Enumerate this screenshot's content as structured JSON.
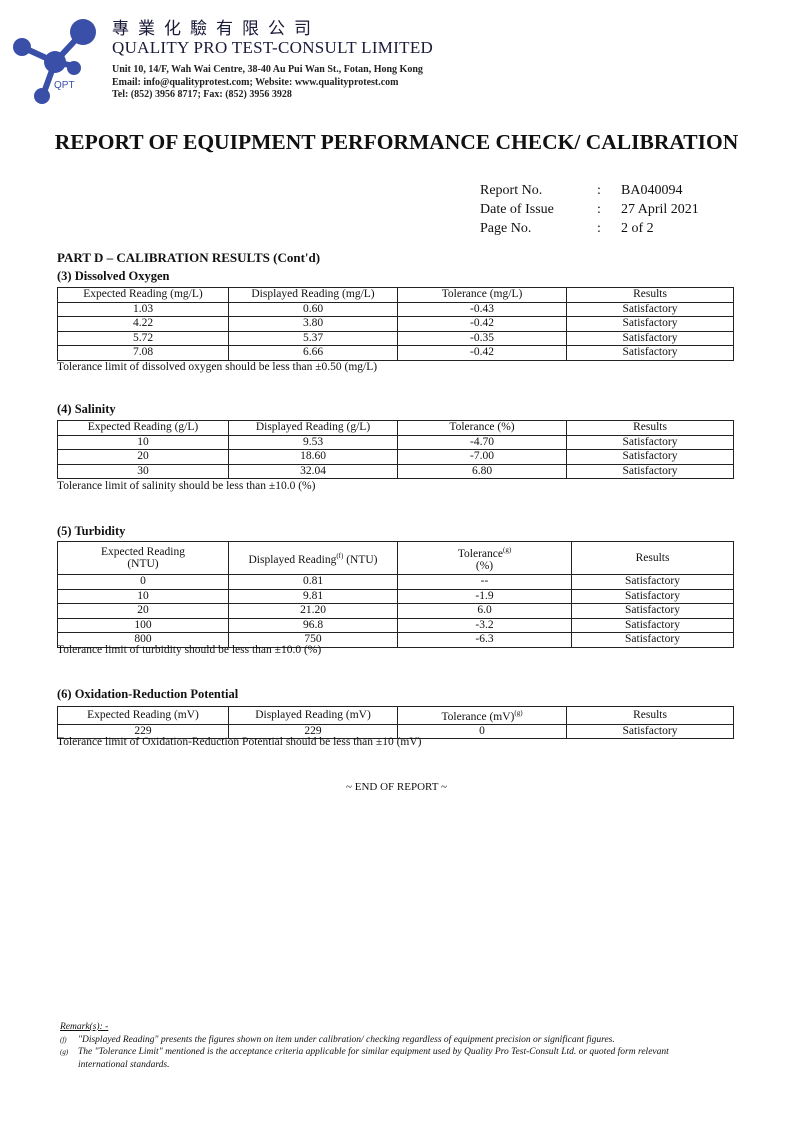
{
  "header": {
    "company_cn": "專業化驗有限公司",
    "company_en": "QUALITY PRO TEST-CONSULT LIMITED",
    "logo_text": "QPT",
    "address": "Unit 10, 14/F, Wah Wai Centre, 38-40 Au Pui Wan St., Fotan, Hong Kong",
    "email_web": "Email: info@qualityprotest.com; Website: www.qualityprotest.com",
    "tel_fax": "Tel: (852) 3956 8717; Fax: (852) 3956 3928",
    "logo_color": "#3a4fa8"
  },
  "title": "REPORT OF EQUIPMENT PERFORMANCE CHECK/ CALIBRATION",
  "meta": [
    {
      "label": "Report No.",
      "value": "BA040094"
    },
    {
      "label": "Date of Issue",
      "value": "27 April 2021"
    },
    {
      "label": "Page No.",
      "value": "2 of 2"
    }
  ],
  "part": "PART D – CALIBRATION RESULTS (Cont'd)",
  "do": {
    "heading": "(3)  Dissolved Oxygen",
    "cols": [
      "Expected Reading (mg/L)",
      "Displayed Reading (mg/L)",
      "Tolerance (mg/L)",
      "Results"
    ],
    "rows": [
      [
        "1.03",
        "0.60",
        "-0.43",
        "Satisfactory"
      ],
      [
        "4.22",
        "3.80",
        "-0.42",
        "Satisfactory"
      ],
      [
        "5.72",
        "5.37",
        "-0.35",
        "Satisfactory"
      ],
      [
        "7.08",
        "6.66",
        "-0.42",
        "Satisfactory"
      ]
    ],
    "note": "Tolerance limit of dissolved oxygen should be less than ±0.50 (mg/L)"
  },
  "sal": {
    "heading": "(4)  Salinity",
    "cols": [
      "Expected Reading (g/L)",
      "Displayed Reading (g/L)",
      "Tolerance (%)",
      "Results"
    ],
    "rows": [
      [
        "10",
        "9.53",
        "-4.70",
        "Satisfactory"
      ],
      [
        "20",
        "18.60",
        "-7.00",
        "Satisfactory"
      ],
      [
        "30",
        "32.04",
        "6.80",
        "Satisfactory"
      ]
    ],
    "note": "Tolerance limit of salinity should be less than ±10.0 (%)"
  },
  "tur": {
    "heading": "(5)  Turbidity",
    "cols": [
      "Expected Reading",
      "(NTU)",
      "Displayed Reading",
      "(f)",
      " (NTU)",
      "Tolerance",
      "(g)",
      "(%)",
      "Results"
    ],
    "rows": [
      [
        "0",
        "0.81",
        "--",
        "Satisfactory"
      ],
      [
        "10",
        "9.81",
        "-1.9",
        "Satisfactory"
      ],
      [
        "20",
        "21.20",
        "6.0",
        "Satisfactory"
      ],
      [
        "100",
        "96.8",
        "-3.2",
        "Satisfactory"
      ],
      [
        "800",
        "750",
        "-6.3",
        "Satisfactory"
      ]
    ],
    "note": "Tolerance limit of turbidity should be less than ±10.0 (%)"
  },
  "orp": {
    "heading": "(6)  Oxidation-Reduction Potential",
    "cols": [
      "Expected Reading (mV)",
      "Displayed Reading (mV)",
      "Tolerance (mV)",
      "(g)",
      "Results"
    ],
    "rows": [
      [
        "229",
        "229",
        "0",
        "Satisfactory"
      ]
    ],
    "note": "Tolerance limit of Oxidation-Reduction Potential should be less than ±10 (mV)"
  },
  "end": "~ END OF REPORT ~",
  "remarks": {
    "title": "Remark(s): -",
    "items": [
      {
        "mark": "(f)",
        "text": "\"Displayed Reading\" presents the figures shown on item under calibration/ checking regardless of equipment precision or significant figures."
      },
      {
        "mark": "(g)",
        "text": "The \"Tolerance Limit\" mentioned is the acceptance criteria applicable for similar equipment used by Quality Pro Test-Consult Ltd. or quoted form relevant international standards."
      }
    ]
  }
}
